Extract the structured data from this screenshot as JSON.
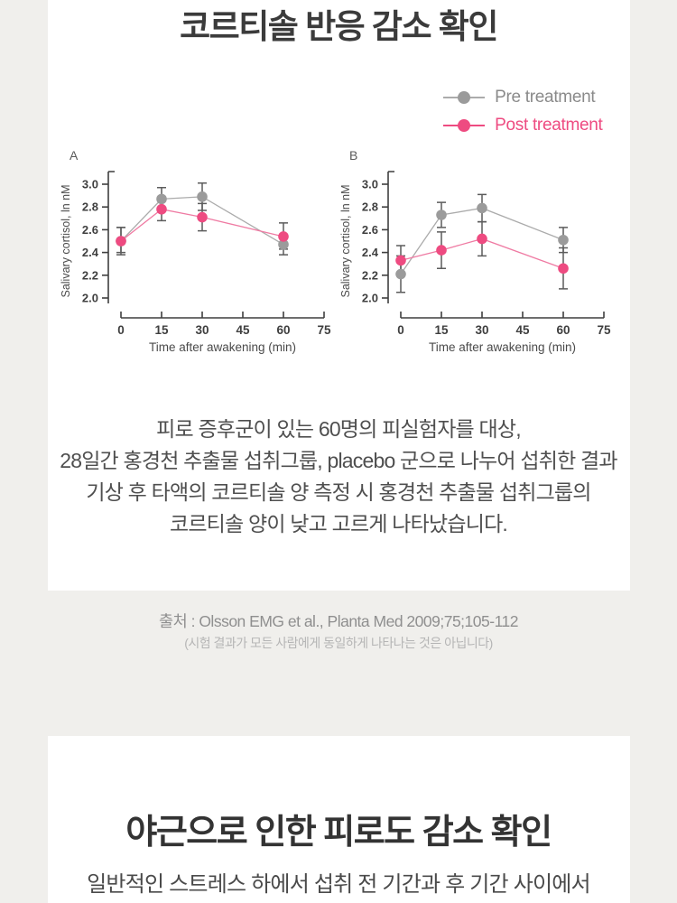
{
  "section1": {
    "title": "코르티솔 반응 감소 확인",
    "body": [
      "피로 증후군이 있는 60명의 피실험자를 대상,",
      "28일간 홍경천 추출물 섭취그룹, placebo 군으로 나누어 섭취한 결과",
      "기상 후 타액의 코르티솔 양 측정 시 홍경천 추출물 섭취그룹의",
      "코르티솔 양이 낮고 고르게 나타났습니다."
    ]
  },
  "citation": {
    "source": "출처 : Olsson EMG et al., Planta Med 2009;75;105-112",
    "disclaimer": "(시험 결과가 모든 사람에게 동일하게 나타나는 것은 아닙니다)"
  },
  "section2": {
    "title": "야근으로 인한 피로도 감소 확인",
    "body": "일반적인 스트레스 하에서 섭취 전 기간과 후 기간 사이에서"
  },
  "colors": {
    "page_bg": "#f0efec",
    "card_bg": "#ffffff",
    "title_text": "#3b3b3b",
    "body_text": "#4f4f4f",
    "pre_gray": "#9b9b9b",
    "post_pink": "#ee4b81",
    "error_bar": "#5c5c5c"
  },
  "chart_data": [
    {
      "type": "line",
      "panel_label": "A",
      "xlabel": "Time after awakening (min)",
      "ylabel": "Salivary cortisol, ln nM",
      "x": [
        0,
        15,
        30,
        60
      ],
      "x_ticks": [
        0,
        15,
        30,
        45,
        60,
        75
      ],
      "y_ticks": [
        2.0,
        2.2,
        2.4,
        2.6,
        2.8,
        3.0
      ],
      "xlim": [
        0,
        75
      ],
      "ylim": [
        2.0,
        3.0
      ],
      "grid": false,
      "series": [
        {
          "name": "Pre treatment",
          "color": "#9b9b9b",
          "line_color": "#ababab",
          "values": [
            2.5,
            2.87,
            2.89,
            2.47
          ],
          "err_lo": [
            2.4,
            2.77,
            2.77,
            2.38
          ],
          "err_hi": [
            2.62,
            2.97,
            3.01,
            2.56
          ]
        },
        {
          "name": "Post treatment",
          "color": "#ee4b81",
          "line_color": "#ef7ba3",
          "values": [
            2.5,
            2.78,
            2.71,
            2.54
          ],
          "err_lo": [
            2.38,
            2.68,
            2.59,
            2.43
          ],
          "err_hi": [
            2.62,
            2.88,
            2.83,
            2.66
          ]
        }
      ]
    },
    {
      "type": "line",
      "panel_label": "B",
      "xlabel": "Time after awakening (min)",
      "ylabel": "Salivary cortisol, ln nM",
      "x": [
        0,
        15,
        30,
        60
      ],
      "x_ticks": [
        0,
        15,
        30,
        45,
        60,
        75
      ],
      "y_ticks": [
        2.0,
        2.2,
        2.4,
        2.6,
        2.8,
        3.0
      ],
      "xlim": [
        0,
        75
      ],
      "ylim": [
        2.0,
        3.0
      ],
      "grid": false,
      "series": [
        {
          "name": "Pre treatment",
          "color": "#9b9b9b",
          "line_color": "#ababab",
          "values": [
            2.21,
            2.73,
            2.79,
            2.51
          ],
          "err_lo": [
            2.05,
            2.62,
            2.67,
            2.4
          ],
          "err_hi": [
            2.37,
            2.84,
            2.91,
            2.62
          ]
        },
        {
          "name": "Post treatment",
          "color": "#ee4b81",
          "line_color": "#ef7ba3",
          "values": [
            2.33,
            2.42,
            2.52,
            2.26
          ],
          "err_lo": [
            2.2,
            2.26,
            2.37,
            2.08
          ],
          "err_hi": [
            2.46,
            2.58,
            2.67,
            2.44
          ]
        }
      ]
    }
  ]
}
